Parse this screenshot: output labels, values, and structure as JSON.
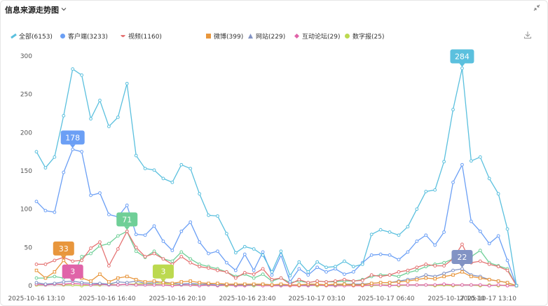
{
  "header": {
    "title": "信息来源走势图",
    "chevron_icon": "chevron-down-icon",
    "collapse_icon": "collapse-icon",
    "download_icon": "download-icon"
  },
  "chart_data": {
    "type": "line",
    "title": "信息来源走势图",
    "ylim": [
      0,
      300
    ],
    "y_ticks": [
      0,
      50,
      100,
      150,
      200,
      250,
      300
    ],
    "grid": false,
    "legend_position": "top",
    "x_tick_labels": [
      "2025-10-16 13:10",
      "2025-10-16 16:40",
      "2025-10-16 20:10",
      "2025-10-16 23:40",
      "2025-10-17 03:10",
      "2025-10-17 06:40",
      "2025-10-17 10:10",
      "2025-10-17 13:10"
    ],
    "series": [
      {
        "name": "全部(6153)",
        "color": "#5bc0de",
        "icon": "line-marker-icon",
        "values": [
          175,
          154,
          168,
          222,
          283,
          275,
          218,
          242,
          208,
          220,
          264,
          170,
          153,
          151,
          140,
          135,
          158,
          153,
          120,
          92,
          91,
          68,
          43,
          51,
          48,
          40,
          18,
          45,
          13,
          31,
          18,
          31,
          24,
          25,
          32,
          25,
          28,
          67,
          73,
          70,
          66,
          77,
          100,
          123,
          125,
          162,
          230,
          284,
          163,
          168,
          140,
          120,
          74,
          0
        ]
      },
      {
        "name": "客户端(3233)",
        "color": "#6b9ff5",
        "icon": "circle-marker-icon",
        "values": [
          110,
          98,
          96,
          148,
          178,
          175,
          118,
          121,
          93,
          90,
          105,
          67,
          66,
          78,
          58,
          46,
          71,
          83,
          57,
          42,
          45,
          30,
          20,
          41,
          20,
          44,
          14,
          40,
          5,
          22,
          14,
          24,
          18,
          22,
          15,
          18,
          30,
          40,
          41,
          40,
          34,
          44,
          58,
          66,
          53,
          70,
          135,
          158,
          84,
          71,
          55,
          65,
          33,
          0
        ]
      },
      {
        "name": "视频(1160)",
        "color": "#e57373",
        "icon": "heart-marker-icon",
        "values": [
          28,
          28,
          33,
          37,
          32,
          33,
          49,
          57,
          26,
          48,
          71,
          50,
          38,
          42,
          35,
          28,
          38,
          30,
          25,
          23,
          20,
          18,
          10,
          17,
          15,
          22,
          8,
          10,
          2,
          8,
          4,
          6,
          5,
          6,
          8,
          6,
          7,
          14,
          12,
          14,
          18,
          20,
          24,
          28,
          26,
          26,
          35,
          54,
          30,
          32,
          28,
          25,
          20,
          0
        ]
      },
      {
        "name": "微博(399)",
        "color": "#e8963c",
        "icon": "square-marker-icon",
        "values": [
          20,
          10,
          18,
          33,
          20,
          10,
          6,
          15,
          5,
          10,
          12,
          8,
          5,
          6,
          4,
          3,
          5,
          6,
          4,
          3,
          3,
          2,
          2,
          2,
          2,
          2,
          1,
          2,
          1,
          1,
          2,
          2,
          1,
          2,
          2,
          1,
          1,
          3,
          4,
          4,
          5,
          6,
          8,
          10,
          9,
          12,
          14,
          18,
          12,
          10,
          8,
          6,
          4,
          0
        ]
      },
      {
        "name": "网站(229)",
        "color": "#8293c4",
        "icon": "triangle-marker-icon",
        "values": [
          4,
          2,
          3,
          5,
          6,
          4,
          3,
          3,
          2,
          5,
          4,
          6,
          3,
          4,
          5,
          3,
          2,
          3,
          2,
          2,
          1,
          2,
          1,
          1,
          1,
          2,
          1,
          1,
          1,
          1,
          1,
          2,
          1,
          1,
          2,
          2,
          2,
          3,
          4,
          4,
          6,
          8,
          10,
          14,
          12,
          16,
          20,
          22,
          14,
          12,
          8,
          6,
          4,
          0
        ]
      },
      {
        "name": "互动论坛(29)",
        "color": "#e063a8",
        "icon": "diamond-marker-icon",
        "values": [
          2,
          1,
          2,
          2,
          3,
          2,
          1,
          2,
          1,
          1,
          2,
          1,
          1,
          1,
          1,
          0,
          1,
          1,
          0,
          1,
          0,
          1,
          0,
          0,
          1,
          0,
          0,
          0,
          0,
          0,
          0,
          1,
          0,
          0,
          0,
          0,
          0,
          1,
          1,
          0,
          1,
          1,
          1,
          1,
          1,
          2,
          1,
          1,
          1,
          1,
          0,
          1,
          0,
          0
        ]
      },
      {
        "name": "数字报(25)",
        "color": "#bcd94f",
        "icon": "circle-marker-icon",
        "values": [
          1,
          1,
          2,
          1,
          1,
          0,
          1,
          1,
          2,
          1,
          2,
          2,
          3,
          2,
          3,
          1,
          1,
          1,
          2,
          1,
          1,
          0,
          1,
          1,
          0,
          1,
          1,
          0,
          1,
          0,
          1,
          0,
          1,
          0,
          1,
          0,
          1,
          0,
          1,
          1,
          0,
          1,
          1,
          1,
          0,
          1,
          0,
          1,
          1,
          0,
          1,
          0,
          1,
          0
        ]
      },
      {
        "name": "",
        "color": "#6fcf97",
        "icon": "circle-marker-icon",
        "values": [
          10,
          10,
          12,
          10,
          11,
          38,
          42,
          52,
          55,
          65,
          71,
          45,
          37,
          45,
          35,
          32,
          44,
          35,
          28,
          25,
          22,
          18,
          12,
          15,
          10,
          15,
          6,
          10,
          4,
          6,
          4,
          6,
          5,
          5,
          6,
          6,
          8,
          12,
          14,
          14,
          12,
          17,
          20,
          25,
          28,
          30,
          35,
          42,
          38,
          46,
          30,
          26,
          22,
          0
        ]
      }
    ],
    "annotations": [
      {
        "series": "全部(6153)",
        "index": 47,
        "value": 284,
        "label": "284",
        "color": "#5bc0de"
      },
      {
        "series": "客户端(3233)",
        "index": 4,
        "value": 178,
        "label": "178",
        "color": "#6b9ff5"
      },
      {
        "series": "视频(1160)",
        "index": 10,
        "value": 71,
        "label": "71",
        "color": "#6fcf97"
      },
      {
        "series": "微博(399)",
        "index": 3,
        "value": 33,
        "label": "33",
        "color": "#e8963c"
      },
      {
        "series": "网站(229)",
        "index": 47,
        "value": 22,
        "label": "22",
        "color": "#8293c4"
      },
      {
        "series": "互动论坛(29)",
        "index": 4,
        "value": 3,
        "label": "3",
        "color": "#e063a8"
      },
      {
        "series": "数字报(25)",
        "index": 14,
        "value": 3,
        "label": "3",
        "color": "#bcd94f"
      }
    ]
  }
}
